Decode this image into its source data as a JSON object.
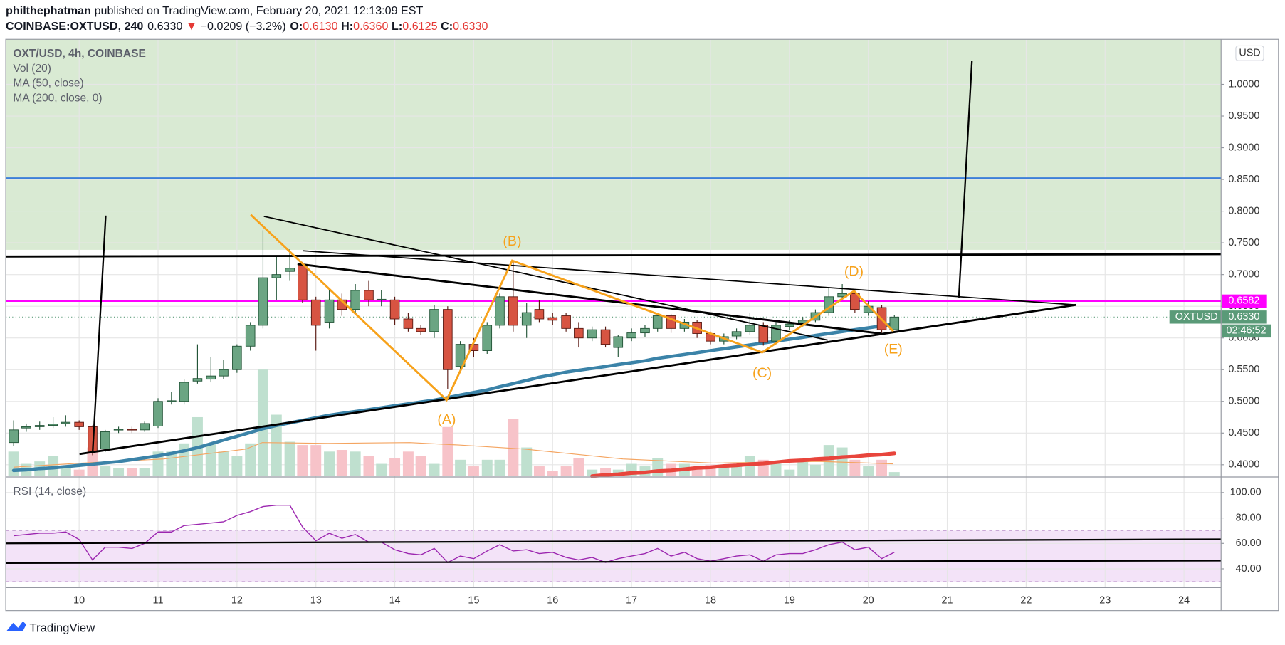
{
  "header": {
    "author": "philthephatman",
    "published": "published on TradingView.com, February 20, 2021 12:13:09 EST",
    "symbol": "COINBASE:OXTUSD, 240",
    "last": "0.6330",
    "arrow": "▼",
    "change": "−0.0209 (−3.2%)",
    "o_label": "O:",
    "o": "0.6130",
    "h_label": "H:",
    "h": "0.6360",
    "l_label": "L:",
    "l": "0.6125",
    "c_label": "C:",
    "c": "0.6330"
  },
  "chart_data": {
    "type": "candlestick",
    "title": "OXT/USD, 4h, COINBASE",
    "volume_name": "Vol (20)",
    "unit": "USD",
    "xlim": [
      9.07,
      24.47
    ],
    "xticks": [
      10,
      11,
      12,
      13,
      14,
      15,
      16,
      17,
      18,
      19,
      20,
      21,
      22,
      23,
      24
    ],
    "ylim": [
      0.382,
      1.071
    ],
    "yticks": [
      {
        "value": 0.4,
        "label": "0.4000"
      },
      {
        "value": 0.45,
        "label": "0.4500"
      },
      {
        "value": 0.5,
        "label": "0.5000"
      },
      {
        "value": 0.55,
        "label": "0.5500"
      },
      {
        "value": 0.6,
        "label": "0.6000"
      },
      {
        "value": 0.65,
        "label": "0.6500"
      },
      {
        "value": 0.7,
        "label": "0.7000"
      },
      {
        "value": 0.75,
        "label": "0.7500"
      },
      {
        "value": 0.8,
        "label": "0.8000"
      },
      {
        "value": 0.85,
        "label": "0.8500"
      },
      {
        "value": 0.9,
        "label": "0.9000"
      },
      {
        "value": 0.95,
        "label": "0.9500"
      },
      {
        "value": 1.0,
        "label": "1.0000"
      }
    ],
    "grid": true,
    "up_color": "#6ba583",
    "down_color": "#d75442",
    "up_volume_color": "#bfe0cf",
    "down_volume_color": "#f7c3c9",
    "zone": {
      "low": 0.739,
      "color": "#d9ead3"
    },
    "price_lines": [
      {
        "value": 0.852,
        "color": "#3d7fd9"
      },
      {
        "value": 0.6582,
        "color": "#ff00ff"
      }
    ],
    "last_price": {
      "value": 0.633,
      "label": "0.6330",
      "tag": "OXTUSD",
      "countdown": "02:46:52",
      "color": "#5a9a78"
    },
    "x": [
      9.17,
      9.33,
      9.5,
      9.67,
      9.83,
      10,
      10.17,
      10.33,
      10.5,
      10.67,
      10.83,
      11,
      11.17,
      11.33,
      11.5,
      11.67,
      11.83,
      12,
      12.17,
      12.33,
      12.5,
      12.67,
      12.83,
      13,
      13.17,
      13.33,
      13.5,
      13.67,
      13.83,
      14,
      14.17,
      14.33,
      14.5,
      14.67,
      14.83,
      15,
      15.17,
      15.33,
      15.5,
      15.67,
      15.83,
      16,
      16.17,
      16.33,
      16.5,
      16.67,
      16.83,
      17,
      17.17,
      17.33,
      17.5,
      17.67,
      17.83,
      18,
      18.17,
      18.33,
      18.5,
      18.67,
      18.83,
      19,
      19.17,
      19.33,
      19.5,
      19.67,
      19.83,
      20,
      20.17,
      20.33
    ],
    "open": [
      0.435,
      0.458,
      0.46,
      0.462,
      0.465,
      0.467,
      0.46,
      0.425,
      0.455,
      0.456,
      0.455,
      0.461,
      0.5,
      0.5,
      0.532,
      0.535,
      0.54,
      0.55,
      0.587,
      0.62,
      0.695,
      0.705,
      0.715,
      0.66,
      0.625,
      0.66,
      0.645,
      0.675,
      0.66,
      0.66,
      0.63,
      0.615,
      0.61,
      0.645,
      0.555,
      0.59,
      0.58,
      0.62,
      0.665,
      0.62,
      0.645,
      0.632,
      0.635,
      0.615,
      0.6,
      0.613,
      0.585,
      0.6,
      0.608,
      0.615,
      0.635,
      0.615,
      0.625,
      0.607,
      0.595,
      0.603,
      0.61,
      0.62,
      0.595,
      0.618,
      0.622,
      0.628,
      0.64,
      0.665,
      0.67,
      0.64,
      0.648,
      0.613
    ],
    "high": [
      0.47,
      0.465,
      0.468,
      0.475,
      0.478,
      0.47,
      0.462,
      0.455,
      0.46,
      0.46,
      0.468,
      0.505,
      0.515,
      0.535,
      0.59,
      0.57,
      0.565,
      0.59,
      0.625,
      0.77,
      0.73,
      0.74,
      0.72,
      0.665,
      0.675,
      0.67,
      0.685,
      0.69,
      0.675,
      0.665,
      0.64,
      0.62,
      0.652,
      0.65,
      0.595,
      0.6,
      0.625,
      0.67,
      0.72,
      0.655,
      0.66,
      0.64,
      0.64,
      0.625,
      0.618,
      0.618,
      0.605,
      0.615,
      0.62,
      0.64,
      0.638,
      0.63,
      0.628,
      0.61,
      0.607,
      0.615,
      0.64,
      0.625,
      0.625,
      0.628,
      0.633,
      0.645,
      0.68,
      0.685,
      0.675,
      0.658,
      0.652,
      0.636
    ],
    "low": [
      0.43,
      0.452,
      0.455,
      0.458,
      0.46,
      0.455,
      0.415,
      0.42,
      0.45,
      0.45,
      0.452,
      0.458,
      0.495,
      0.495,
      0.528,
      0.53,
      0.535,
      0.545,
      0.58,
      0.615,
      0.66,
      0.69,
      0.655,
      0.58,
      0.615,
      0.635,
      0.64,
      0.65,
      0.65,
      0.62,
      0.61,
      0.605,
      0.6,
      0.52,
      0.545,
      0.57,
      0.575,
      0.615,
      0.61,
      0.6,
      0.625,
      0.62,
      0.61,
      0.585,
      0.595,
      0.585,
      0.57,
      0.595,
      0.602,
      0.61,
      0.608,
      0.61,
      0.6,
      0.59,
      0.59,
      0.598,
      0.605,
      0.588,
      0.59,
      0.612,
      0.618,
      0.625,
      0.635,
      0.66,
      0.64,
      0.635,
      0.608,
      0.6125
    ],
    "close": [
      0.455,
      0.46,
      0.462,
      0.464,
      0.467,
      0.46,
      0.42,
      0.452,
      0.456,
      0.455,
      0.465,
      0.5,
      0.501,
      0.53,
      0.536,
      0.54,
      0.55,
      0.587,
      0.62,
      0.695,
      0.7,
      0.71,
      0.66,
      0.62,
      0.66,
      0.645,
      0.675,
      0.66,
      0.661,
      0.63,
      0.615,
      0.61,
      0.645,
      0.55,
      0.59,
      0.58,
      0.62,
      0.665,
      0.62,
      0.64,
      0.63,
      0.628,
      0.615,
      0.6,
      0.613,
      0.59,
      0.602,
      0.608,
      0.615,
      0.635,
      0.615,
      0.625,
      0.607,
      0.595,
      0.602,
      0.61,
      0.62,
      0.593,
      0.62,
      0.622,
      0.628,
      0.64,
      0.665,
      0.67,
      0.645,
      0.65,
      0.613,
      0.633
    ],
    "volume": [
      30,
      15,
      18,
      25,
      12,
      8,
      35,
      12,
      10,
      10,
      10,
      30,
      30,
      40,
      72,
      40,
      30,
      25,
      40,
      130,
      75,
      42,
      38,
      38,
      30,
      32,
      30,
      25,
      15,
      22,
      30,
      25,
      15,
      60,
      20,
      12,
      20,
      20,
      70,
      35,
      12,
      6,
      12,
      22,
      8,
      10,
      8,
      15,
      12,
      22,
      15,
      15,
      10,
      14,
      12,
      12,
      25,
      20,
      15,
      8,
      18,
      14,
      38,
      35,
      20,
      12,
      20,
      5
    ],
    "series": [
      {
        "name": "MA (50, close)",
        "color": "#3b83a8",
        "values": [
          0.391,
          0.392,
          0.394,
          0.395,
          0.397,
          0.399,
          0.401,
          0.403,
          0.405,
          0.408,
          0.411,
          0.414,
          0.418,
          0.422,
          0.427,
          0.433,
          0.439,
          0.445,
          0.451,
          0.457,
          0.462,
          0.466,
          0.47,
          0.474,
          0.478,
          0.481,
          0.484,
          0.487,
          0.49,
          0.493,
          0.496,
          0.499,
          0.502,
          0.506,
          0.51,
          0.514,
          0.518,
          0.523,
          0.528,
          0.533,
          0.538,
          0.542,
          0.546,
          0.549,
          0.552,
          0.555,
          0.558,
          0.561,
          0.564,
          0.568,
          0.571,
          0.574,
          0.577,
          0.58,
          0.583,
          0.586,
          0.589,
          0.592,
          0.595,
          0.598,
          0.601,
          0.604,
          0.607,
          0.61,
          0.613,
          0.616,
          0.619,
          0.622
        ]
      },
      {
        "name": "MA (200, close, 0)",
        "color": "#e8453c",
        "values": [
          null,
          null,
          null,
          null,
          null,
          null,
          null,
          null,
          null,
          null,
          null,
          null,
          null,
          null,
          null,
          null,
          null,
          null,
          null,
          null,
          null,
          null,
          null,
          null,
          null,
          null,
          null,
          null,
          null,
          null,
          null,
          null,
          null,
          null,
          null,
          null,
          null,
          null,
          null,
          null,
          null,
          null,
          null,
          null,
          0.382,
          0.384,
          0.385,
          0.387,
          0.388,
          0.39,
          0.391,
          0.393,
          0.395,
          0.396,
          0.398,
          0.399,
          0.401,
          0.402,
          0.404,
          0.406,
          0.407,
          0.409,
          0.41,
          0.412,
          0.413,
          0.415,
          0.416,
          0.418
        ]
      }
    ],
    "pattern_labels": [
      "(A)",
      "(B)",
      "(C)",
      "(D)",
      "(E)"
    ],
    "rsi": {
      "name": "RSI (14, close)",
      "color": "#9c27b0",
      "ylim": [
        25.2,
        111.6
      ],
      "band": [
        30,
        70
      ],
      "yticks": [
        {
          "value": 40,
          "label": "40.00"
        },
        {
          "value": 60,
          "label": "60.00"
        },
        {
          "value": 80,
          "label": "80.00"
        },
        {
          "value": 100,
          "label": "100.00"
        }
      ],
      "values": [
        66,
        67,
        68,
        68,
        69,
        63,
        47,
        57,
        57,
        56,
        60,
        69,
        69,
        74,
        75,
        76,
        77,
        82,
        85,
        89,
        90,
        90,
        73,
        62,
        68,
        64,
        67,
        61,
        61,
        55,
        52,
        51,
        56,
        45,
        50,
        48,
        54,
        59,
        54,
        55,
        52,
        53,
        49,
        47,
        49,
        45,
        48,
        50,
        52,
        56,
        50,
        53,
        48,
        46,
        48,
        50,
        51,
        46,
        51,
        52,
        52,
        55,
        59,
        61,
        55,
        57,
        48,
        53
      ]
    }
  },
  "footer": "TradingView"
}
